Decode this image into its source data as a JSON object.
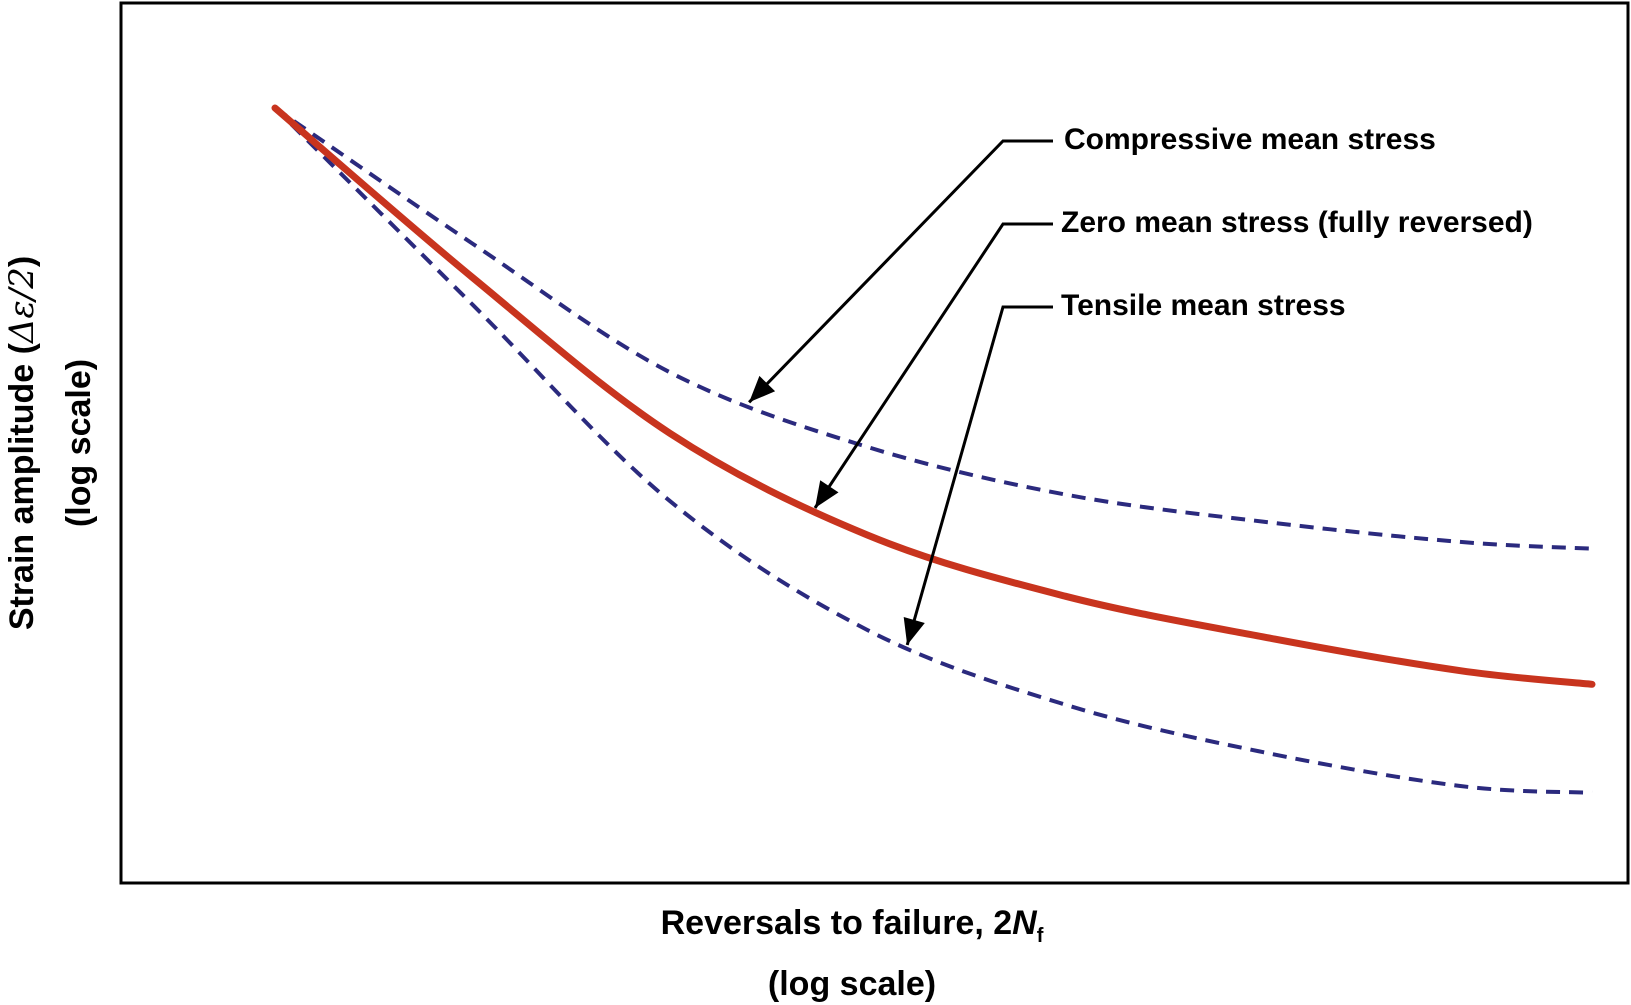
{
  "chart_data": {
    "type": "line",
    "title": "",
    "xlabel": {
      "main": "Reversals to failure, 2",
      "var": "N",
      "sub": "f",
      "scale_note": "(log scale)"
    },
    "ylabel": {
      "main": "Strain amplitude (",
      "symbol": "Δε/2",
      "close": ")",
      "scale_note": "(log scale)"
    },
    "x_ticks": "none",
    "y_ticks": "none",
    "xlim": [
      0,
      1
    ],
    "ylim": [
      0,
      1
    ],
    "grid": false,
    "series": [
      {
        "role": "zero",
        "style": "solid",
        "color": "#c8341e",
        "points": [
          [
            0.0,
            1.0
          ],
          [
            0.15,
            0.75
          ],
          [
            0.3,
            0.52
          ],
          [
            0.45,
            0.37
          ],
          [
            0.6,
            0.28
          ],
          [
            0.75,
            0.22
          ],
          [
            0.9,
            0.17
          ],
          [
            1.0,
            0.15
          ]
        ]
      },
      {
        "role": "compressive",
        "style": "dashed",
        "color": "#2b2a7e",
        "points": [
          [
            0.0,
            1.0
          ],
          [
            0.15,
            0.8
          ],
          [
            0.3,
            0.61
          ],
          [
            0.45,
            0.5
          ],
          [
            0.6,
            0.43
          ],
          [
            0.75,
            0.39
          ],
          [
            0.9,
            0.36
          ],
          [
            1.0,
            0.35
          ]
        ]
      },
      {
        "role": "tensile",
        "style": "dashed",
        "color": "#2b2a7e",
        "points": [
          [
            0.0,
            1.0
          ],
          [
            0.15,
            0.71
          ],
          [
            0.3,
            0.42
          ],
          [
            0.45,
            0.23
          ],
          [
            0.6,
            0.12
          ],
          [
            0.75,
            0.05
          ],
          [
            0.9,
            0.0
          ],
          [
            1.0,
            -0.01
          ]
        ]
      }
    ],
    "annotations": [
      {
        "text": "Compressive mean stress",
        "target_series": "compressive",
        "target_x": 0.36
      },
      {
        "text": "Zero mean stress (fully reversed)",
        "target_series": "zero",
        "target_x": 0.41
      },
      {
        "text": "Tensile mean stress",
        "target_series": "tensile",
        "target_x": 0.48
      }
    ]
  }
}
